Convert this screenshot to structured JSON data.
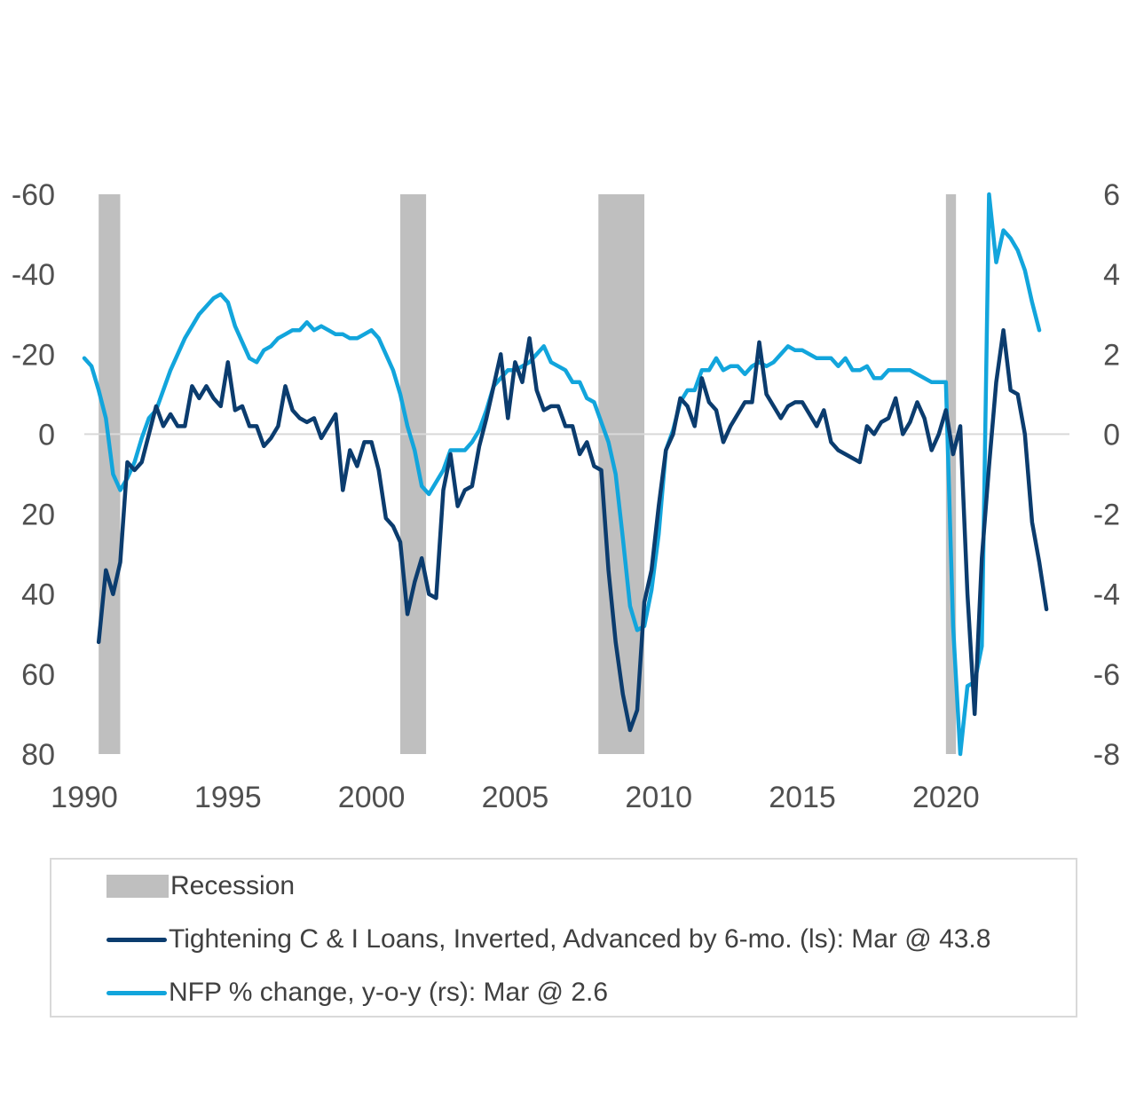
{
  "chart_data": {
    "type": "line",
    "x_range": [
      1990,
      2024.3
    ],
    "left_axis": {
      "label": "",
      "inverted": true,
      "range": [
        -60,
        80
      ],
      "ticks": [
        "-60",
        "-40",
        "-20",
        "0",
        "20",
        "40",
        "60",
        "80"
      ],
      "tick_values": [
        -60,
        -40,
        -20,
        0,
        20,
        40,
        60,
        80
      ]
    },
    "right_axis": {
      "label": "",
      "range": [
        -8,
        6
      ],
      "ticks": [
        "6",
        "4",
        "2",
        "0",
        "-2",
        "-4",
        "-6",
        "-8"
      ],
      "tick_values": [
        6,
        4,
        2,
        0,
        -2,
        -4,
        -6,
        -8
      ]
    },
    "x_ticks": [
      "1990",
      "1995",
      "2000",
      "2005",
      "2010",
      "2015",
      "2020"
    ],
    "x_tick_values": [
      1990,
      1995,
      2000,
      2005,
      2010,
      2015,
      2020
    ],
    "recessions": [
      [
        1990.5,
        1991.25
      ],
      [
        2001.0,
        2001.9
      ],
      [
        2007.9,
        2009.5
      ],
      [
        2020.0,
        2020.35
      ]
    ],
    "series": [
      {
        "name": "Tightening C & I Loans, Inverted, Advanced by 6-mo. (ls): Mar @ 43.8",
        "axis": "left",
        "color": "#0b3c6e",
        "points": [
          [
            1990.5,
            52
          ],
          [
            1990.75,
            34
          ],
          [
            1991.0,
            40
          ],
          [
            1991.25,
            32
          ],
          [
            1991.5,
            7
          ],
          [
            1991.75,
            9
          ],
          [
            1992.0,
            7
          ],
          [
            1992.25,
            0
          ],
          [
            1992.5,
            -7
          ],
          [
            1992.75,
            -2
          ],
          [
            1993.0,
            -5
          ],
          [
            1993.25,
            -2
          ],
          [
            1993.5,
            -2
          ],
          [
            1993.75,
            -12
          ],
          [
            1994.0,
            -9
          ],
          [
            1994.25,
            -12
          ],
          [
            1994.5,
            -9
          ],
          [
            1994.75,
            -7
          ],
          [
            1995.0,
            -18
          ],
          [
            1995.25,
            -6
          ],
          [
            1995.5,
            -7
          ],
          [
            1995.75,
            -2
          ],
          [
            1996.0,
            -2
          ],
          [
            1996.25,
            3
          ],
          [
            1996.5,
            1
          ],
          [
            1996.75,
            -2
          ],
          [
            1997.0,
            -12
          ],
          [
            1997.25,
            -6
          ],
          [
            1997.5,
            -4
          ],
          [
            1997.75,
            -3
          ],
          [
            1998.0,
            -4
          ],
          [
            1998.25,
            1
          ],
          [
            1998.5,
            -2
          ],
          [
            1998.75,
            -5
          ],
          [
            1999.0,
            14
          ],
          [
            1999.25,
            4
          ],
          [
            1999.5,
            8
          ],
          [
            1999.75,
            2
          ],
          [
            2000.0,
            2
          ],
          [
            2000.25,
            9
          ],
          [
            2000.5,
            21
          ],
          [
            2000.75,
            23
          ],
          [
            2001.0,
            27
          ],
          [
            2001.25,
            45
          ],
          [
            2001.5,
            37
          ],
          [
            2001.75,
            31
          ],
          [
            2002.0,
            40
          ],
          [
            2002.25,
            41
          ],
          [
            2002.5,
            14
          ],
          [
            2002.75,
            5
          ],
          [
            2003.0,
            18
          ],
          [
            2003.25,
            14
          ],
          [
            2003.5,
            13
          ],
          [
            2003.75,
            3
          ],
          [
            2004.0,
            -4
          ],
          [
            2004.25,
            -12
          ],
          [
            2004.5,
            -20
          ],
          [
            2004.75,
            -4
          ],
          [
            2005.0,
            -18
          ],
          [
            2005.25,
            -13
          ],
          [
            2005.5,
            -24
          ],
          [
            2005.75,
            -11
          ],
          [
            2006.0,
            -6
          ],
          [
            2006.25,
            -7
          ],
          [
            2006.5,
            -7
          ],
          [
            2006.75,
            -2
          ],
          [
            2007.0,
            -2
          ],
          [
            2007.25,
            5
          ],
          [
            2007.5,
            2
          ],
          [
            2007.75,
            8
          ],
          [
            2008.0,
            9
          ],
          [
            2008.25,
            34
          ],
          [
            2008.5,
            52
          ],
          [
            2008.75,
            65
          ],
          [
            2009.0,
            74
          ],
          [
            2009.25,
            69
          ],
          [
            2009.5,
            42
          ],
          [
            2009.75,
            34
          ],
          [
            2010.0,
            18
          ],
          [
            2010.25,
            4
          ],
          [
            2010.5,
            0
          ],
          [
            2010.75,
            -9
          ],
          [
            2011.0,
            -7
          ],
          [
            2011.25,
            -2
          ],
          [
            2011.5,
            -14
          ],
          [
            2011.75,
            -8
          ],
          [
            2012.0,
            -6
          ],
          [
            2012.25,
            2
          ],
          [
            2012.5,
            -2
          ],
          [
            2012.75,
            -5
          ],
          [
            2013.0,
            -8
          ],
          [
            2013.25,
            -8
          ],
          [
            2013.5,
            -23
          ],
          [
            2013.75,
            -10
          ],
          [
            2014.0,
            -7
          ],
          [
            2014.25,
            -4
          ],
          [
            2014.5,
            -7
          ],
          [
            2014.75,
            -8
          ],
          [
            2015.0,
            -8
          ],
          [
            2015.25,
            -5
          ],
          [
            2015.5,
            -2
          ],
          [
            2015.75,
            -6
          ],
          [
            2016.0,
            2
          ],
          [
            2016.25,
            4
          ],
          [
            2016.5,
            5
          ],
          [
            2016.75,
            6
          ],
          [
            2017.0,
            7
          ],
          [
            2017.25,
            -2
          ],
          [
            2017.5,
            0
          ],
          [
            2017.75,
            -3
          ],
          [
            2018.0,
            -4
          ],
          [
            2018.25,
            -9
          ],
          [
            2018.5,
            0
          ],
          [
            2018.75,
            -3
          ],
          [
            2019.0,
            -8
          ],
          [
            2019.25,
            -4
          ],
          [
            2019.5,
            4
          ],
          [
            2019.75,
            0
          ],
          [
            2020.0,
            -6
          ],
          [
            2020.25,
            5
          ],
          [
            2020.5,
            -2
          ],
          [
            2020.75,
            40
          ],
          [
            2021.0,
            70
          ],
          [
            2021.25,
            31
          ],
          [
            2021.5,
            8
          ],
          [
            2021.75,
            -13
          ],
          [
            2022.0,
            -26
          ],
          [
            2022.25,
            -11
          ],
          [
            2022.5,
            -10
          ],
          [
            2022.75,
            0
          ],
          [
            2023.0,
            22
          ],
          [
            2023.25,
            32
          ],
          [
            2023.5,
            43.8
          ]
        ]
      },
      {
        "name": "NFP % change, y-o-y (rs): Mar @ 2.6",
        "axis": "right",
        "color": "#12a5dc",
        "points": [
          [
            1990.0,
            1.9
          ],
          [
            1990.25,
            1.7
          ],
          [
            1990.5,
            1.1
          ],
          [
            1990.75,
            0.4
          ],
          [
            1991.0,
            -1.0
          ],
          [
            1991.25,
            -1.4
          ],
          [
            1991.5,
            -1.1
          ],
          [
            1991.75,
            -0.7
          ],
          [
            1992.0,
            -0.1
          ],
          [
            1992.25,
            0.4
          ],
          [
            1992.5,
            0.6
          ],
          [
            1992.75,
            1.1
          ],
          [
            1993.0,
            1.6
          ],
          [
            1993.25,
            2.0
          ],
          [
            1993.5,
            2.4
          ],
          [
            1993.75,
            2.7
          ],
          [
            1994.0,
            3.0
          ],
          [
            1994.25,
            3.2
          ],
          [
            1994.5,
            3.4
          ],
          [
            1994.75,
            3.5
          ],
          [
            1995.0,
            3.3
          ],
          [
            1995.25,
            2.7
          ],
          [
            1995.5,
            2.3
          ],
          [
            1995.75,
            1.9
          ],
          [
            1996.0,
            1.8
          ],
          [
            1996.25,
            2.1
          ],
          [
            1996.5,
            2.2
          ],
          [
            1996.75,
            2.4
          ],
          [
            1997.0,
            2.5
          ],
          [
            1997.25,
            2.6
          ],
          [
            1997.5,
            2.6
          ],
          [
            1997.75,
            2.8
          ],
          [
            1998.0,
            2.6
          ],
          [
            1998.25,
            2.7
          ],
          [
            1998.5,
            2.6
          ],
          [
            1998.75,
            2.5
          ],
          [
            1999.0,
            2.5
          ],
          [
            1999.25,
            2.4
          ],
          [
            1999.5,
            2.4
          ],
          [
            1999.75,
            2.5
          ],
          [
            2000.0,
            2.6
          ],
          [
            2000.25,
            2.4
          ],
          [
            2000.5,
            2.0
          ],
          [
            2000.75,
            1.6
          ],
          [
            2001.0,
            1.0
          ],
          [
            2001.25,
            0.2
          ],
          [
            2001.5,
            -0.4
          ],
          [
            2001.75,
            -1.3
          ],
          [
            2002.0,
            -1.5
          ],
          [
            2002.25,
            -1.2
          ],
          [
            2002.5,
            -0.9
          ],
          [
            2002.75,
            -0.4
          ],
          [
            2003.0,
            -0.4
          ],
          [
            2003.25,
            -0.4
          ],
          [
            2003.5,
            -0.2
          ],
          [
            2003.75,
            0.1
          ],
          [
            2004.0,
            0.6
          ],
          [
            2004.25,
            1.2
          ],
          [
            2004.5,
            1.4
          ],
          [
            2004.75,
            1.6
          ],
          [
            2005.0,
            1.6
          ],
          [
            2005.25,
            1.7
          ],
          [
            2005.5,
            1.8
          ],
          [
            2005.75,
            2.0
          ],
          [
            2006.0,
            2.2
          ],
          [
            2006.25,
            1.8
          ],
          [
            2006.5,
            1.7
          ],
          [
            2006.75,
            1.6
          ],
          [
            2007.0,
            1.3
          ],
          [
            2007.25,
            1.3
          ],
          [
            2007.5,
            0.9
          ],
          [
            2007.75,
            0.8
          ],
          [
            2008.0,
            0.3
          ],
          [
            2008.25,
            -0.2
          ],
          [
            2008.5,
            -1.0
          ],
          [
            2008.75,
            -2.6
          ],
          [
            2009.0,
            -4.3
          ],
          [
            2009.25,
            -4.9
          ],
          [
            2009.5,
            -4.8
          ],
          [
            2009.75,
            -3.9
          ],
          [
            2010.0,
            -2.5
          ],
          [
            2010.25,
            -0.4
          ],
          [
            2010.5,
            0.1
          ],
          [
            2010.75,
            0.8
          ],
          [
            2011.0,
            1.1
          ],
          [
            2011.25,
            1.1
          ],
          [
            2011.5,
            1.6
          ],
          [
            2011.75,
            1.6
          ],
          [
            2012.0,
            1.9
          ],
          [
            2012.25,
            1.6
          ],
          [
            2012.5,
            1.7
          ],
          [
            2012.75,
            1.7
          ],
          [
            2013.0,
            1.5
          ],
          [
            2013.25,
            1.7
          ],
          [
            2013.5,
            1.8
          ],
          [
            2013.75,
            1.7
          ],
          [
            2014.0,
            1.8
          ],
          [
            2014.25,
            2.0
          ],
          [
            2014.5,
            2.2
          ],
          [
            2014.75,
            2.1
          ],
          [
            2015.0,
            2.1
          ],
          [
            2015.25,
            2.0
          ],
          [
            2015.5,
            1.9
          ],
          [
            2015.75,
            1.9
          ],
          [
            2016.0,
            1.9
          ],
          [
            2016.25,
            1.7
          ],
          [
            2016.5,
            1.9
          ],
          [
            2016.75,
            1.6
          ],
          [
            2017.0,
            1.6
          ],
          [
            2017.25,
            1.7
          ],
          [
            2017.5,
            1.4
          ],
          [
            2017.75,
            1.4
          ],
          [
            2018.0,
            1.6
          ],
          [
            2018.25,
            1.6
          ],
          [
            2018.5,
            1.6
          ],
          [
            2018.75,
            1.6
          ],
          [
            2019.0,
            1.5
          ],
          [
            2019.25,
            1.4
          ],
          [
            2019.5,
            1.3
          ],
          [
            2019.75,
            1.3
          ],
          [
            2020.0,
            1.3
          ],
          [
            2020.25,
            -4.8
          ],
          [
            2020.5,
            -8.0
          ],
          [
            2020.75,
            -6.3
          ],
          [
            2021.0,
            -6.2
          ],
          [
            2021.25,
            -5.3
          ],
          [
            2021.5,
            6.0
          ],
          [
            2021.75,
            4.3
          ],
          [
            2022.0,
            5.1
          ],
          [
            2022.25,
            4.9
          ],
          [
            2022.5,
            4.6
          ],
          [
            2022.75,
            4.1
          ],
          [
            2023.0,
            3.3
          ],
          [
            2023.25,
            2.6
          ]
        ]
      }
    ],
    "legend": {
      "recession_label": "Recession",
      "position": "bottom"
    },
    "colors": {
      "recession": "#bfbfbf",
      "zero_line": "#d9d9d9",
      "tick_text": "#505050"
    }
  }
}
